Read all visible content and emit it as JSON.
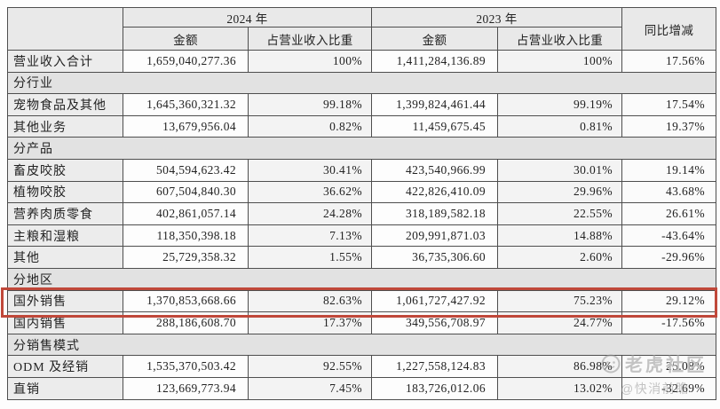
{
  "table": {
    "header": {
      "y2024": "2024 年",
      "y2023": "2023 年",
      "amount": "金额",
      "share": "占营业收入比重",
      "yoy": "同比增减"
    },
    "rows": [
      {
        "type": "data",
        "label": "营业收入合计",
        "a24": "1,659,040,277.36",
        "p24": "100%",
        "a23": "1,411,284,136.89",
        "p23": "100%",
        "yoy": "17.56%"
      },
      {
        "type": "section",
        "label": "分行业"
      },
      {
        "type": "data",
        "label": "宠物食品及其他",
        "a24": "1,645,360,321.32",
        "p24": "99.18%",
        "a23": "1,399,824,461.44",
        "p23": "99.19%",
        "yoy": "17.54%"
      },
      {
        "type": "data",
        "label": "其他业务",
        "a24": "13,679,956.04",
        "p24": "0.82%",
        "a23": "11,459,675.45",
        "p23": "0.81%",
        "yoy": "19.37%"
      },
      {
        "type": "section",
        "label": "分产品"
      },
      {
        "type": "data",
        "label": "畜皮咬胶",
        "a24": "504,594,623.42",
        "p24": "30.41%",
        "a23": "423,540,966.99",
        "p23": "30.01%",
        "yoy": "19.14%"
      },
      {
        "type": "data",
        "label": "植物咬胶",
        "a24": "607,504,840.30",
        "p24": "36.62%",
        "a23": "422,826,410.09",
        "p23": "29.96%",
        "yoy": "43.68%"
      },
      {
        "type": "data",
        "label": "营养肉质零食",
        "a24": "402,861,057.14",
        "p24": "24.28%",
        "a23": "318,189,582.18",
        "p23": "22.55%",
        "yoy": "26.61%"
      },
      {
        "type": "data",
        "label": "主粮和湿粮",
        "a24": "118,350,398.18",
        "p24": "7.13%",
        "a23": "209,991,871.03",
        "p23": "14.88%",
        "yoy": "-43.64%"
      },
      {
        "type": "data",
        "label": "其他",
        "a24": "25,729,358.32",
        "p24": "1.55%",
        "a23": "36,735,306.60",
        "p23": "2.60%",
        "yoy": "-29.96%"
      },
      {
        "type": "section",
        "label": "分地区"
      },
      {
        "type": "data",
        "highlight": true,
        "label": "国外销售",
        "a24": "1,370,853,668.66",
        "p24": "82.63%",
        "a23": "1,061,727,427.92",
        "p23": "75.23%",
        "yoy": "29.12%"
      },
      {
        "type": "data",
        "label": "国内销售",
        "a24": "288,186,608.70",
        "p24": "17.37%",
        "a23": "349,556,708.97",
        "p23": "24.77%",
        "yoy": "-17.56%"
      },
      {
        "type": "section",
        "label": "分销售模式"
      },
      {
        "type": "data",
        "label": "ODM 及经销",
        "a24": "1,535,370,503.42",
        "p24": "92.55%",
        "a23": "1,227,558,124.83",
        "p23": "86.98%",
        "yoy": "25.08%"
      },
      {
        "type": "data",
        "label": "直销",
        "a24": "123,669,773.94",
        "p24": "7.45%",
        "a23": "183,726,012.06",
        "p23": "13.02%",
        "yoy": "-32.69%"
      }
    ]
  },
  "highlight": {
    "row": "国外销售",
    "color": "#c0483a"
  },
  "watermark": {
    "community": "老虎社区",
    "user": "@快消前瞻"
  }
}
